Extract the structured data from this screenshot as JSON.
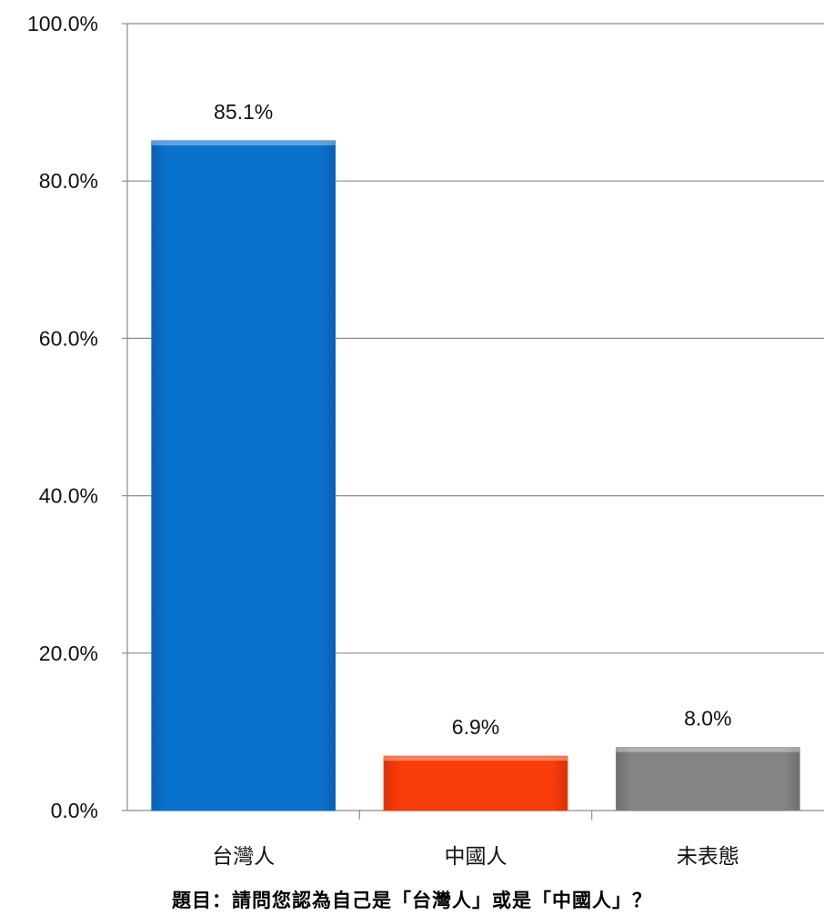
{
  "chart_data": {
    "type": "bar",
    "title": "題目：請問您認為自己是「台灣人」或是「中國人」？",
    "categories": [
      "台灣人",
      "中國人",
      "未表態"
    ],
    "values": [
      85.1,
      6.9,
      8.0
    ],
    "data_labels": [
      "85.1%",
      "6.9%",
      "8.0%"
    ],
    "colors": [
      "#0870C8",
      "#F43C0C",
      "#808080"
    ],
    "ylim": [
      0,
      100
    ],
    "yticks": [
      0,
      20,
      40,
      60,
      80,
      100
    ],
    "ytick_labels": [
      "0.0%",
      "20.0%",
      "40.0%",
      "60.0%",
      "80.0%",
      "100.0%"
    ],
    "grid": true,
    "legend": "none"
  }
}
